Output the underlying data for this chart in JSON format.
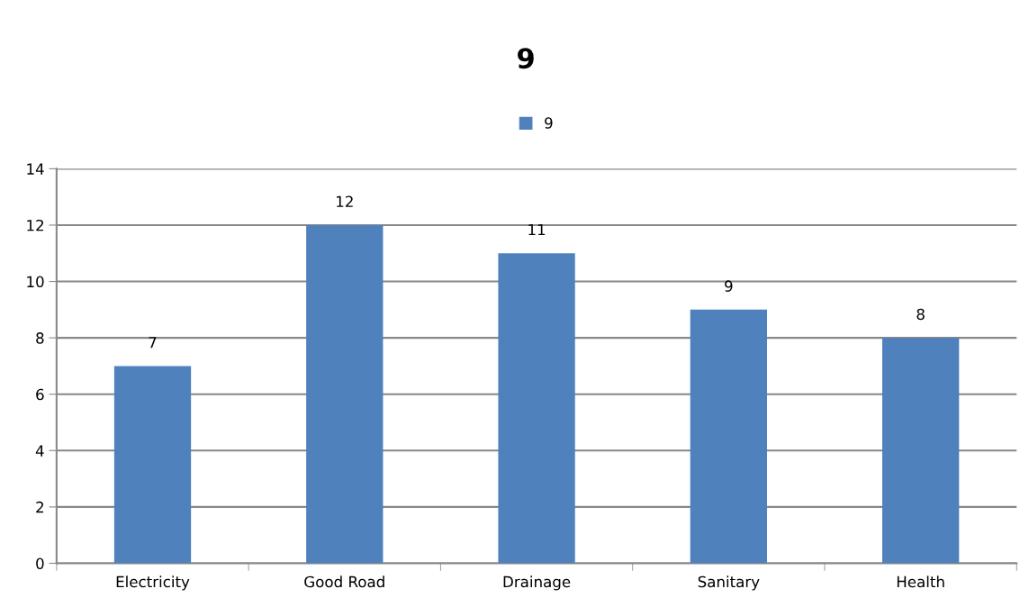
{
  "chart_data": {
    "type": "bar",
    "title": "9",
    "categories": [
      "Electricity",
      "Good Road",
      "Drainage",
      "Sanitary",
      "Health"
    ],
    "series": [
      {
        "name": "9",
        "color": "#4f81bd",
        "values": [
          7,
          12,
          11,
          9,
          8
        ]
      }
    ],
    "ylim": [
      0,
      14
    ],
    "yticks": [
      0,
      2,
      4,
      6,
      8,
      10,
      12,
      14
    ],
    "grid": "y",
    "legend": "top",
    "data_labels": true
  }
}
